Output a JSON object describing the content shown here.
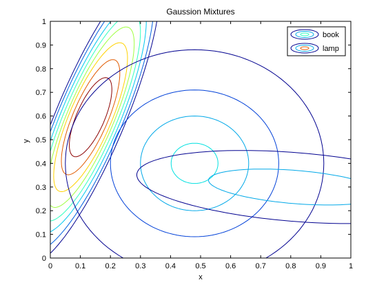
{
  "chart_data": {
    "type": "contour",
    "title": "Gaussion Mixtures",
    "xlabel": "x",
    "ylabel": "y",
    "xlim": [
      0,
      1
    ],
    "ylim": [
      0,
      1
    ],
    "xticks": [
      "0",
      "0.1",
      "0.2",
      "0.3",
      "0.4",
      "0.5",
      "0.6",
      "0.7",
      "0.8",
      "0.9",
      "1"
    ],
    "yticks": [
      "0",
      "0.1",
      "0.2",
      "0.3",
      "0.4",
      "0.5",
      "0.6",
      "0.7",
      "0.8",
      "0.9",
      "1"
    ],
    "legend": {
      "placement": "top-right",
      "entries": [
        "book",
        "lamp"
      ]
    },
    "series": [
      {
        "name": "book",
        "components": [
          {
            "center": [
              0.134,
              0.595
            ],
            "tilt_deg": 72,
            "contours": [
              {
                "rx": 0.048,
                "ry": 0.175,
                "color": "#8b0000"
              },
              {
                "rx": 0.06,
                "ry": 0.255,
                "color": "#e05a00"
              },
              {
                "rx": 0.072,
                "ry": 0.33,
                "color": "#ffd200"
              },
              {
                "rx": 0.08,
                "ry": 0.4,
                "color": "#9fff40"
              },
              {
                "rx": 0.09,
                "ry": 0.46,
                "color": "#30ffc0"
              },
              {
                "rx": 0.1,
                "ry": 0.515,
                "color": "#00c8f0"
              },
              {
                "rx": 0.11,
                "ry": 0.59,
                "color": "#0060e0"
              },
              {
                "rx": 0.118,
                "ry": 0.65,
                "color": "#00008f"
              }
            ]
          }
        ]
      },
      {
        "name": "lamp",
        "components": [
          {
            "center": [
              0.48,
              0.4
            ],
            "tilt_deg": 0,
            "contours": [
              {
                "rx": 0.085,
                "ry": 0.078,
                "color": "#00e0e0"
              },
              {
                "rx": 0.2,
                "ry": 0.18,
                "color": "#00a8e8"
              },
              {
                "rx": 0.31,
                "ry": 0.28,
                "color": "#0040d8"
              },
              {
                "rx": 0.48,
                "ry": 0.43,
                "color": "#00008f"
              }
            ]
          },
          {
            "center": [
              0.815,
              0.3
            ],
            "tilt_deg": -6,
            "contours": [
              {
                "rx": 0.07,
                "ry": 0.29,
                "color": "#00a8e8"
              },
              {
                "rx": 0.145,
                "ry": 0.53,
                "color": "#00008f"
              }
            ]
          }
        ]
      }
    ]
  }
}
